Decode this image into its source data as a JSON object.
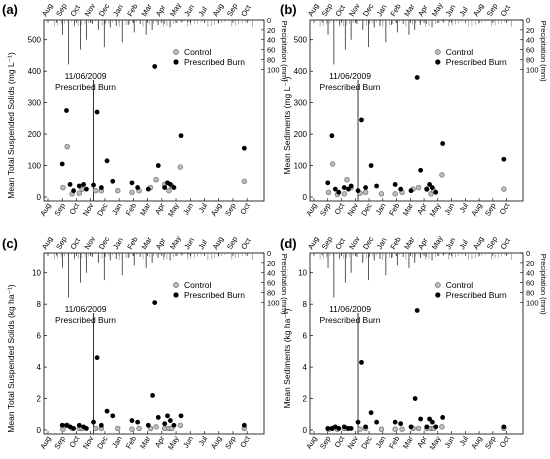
{
  "figure": {
    "panels": [
      {
        "tag": "(a)",
        "ylabel_html": "Mean Total Suspended Solids (mg L⁻¹)",
        "yticks": [
          "0",
          "100",
          "200",
          "300",
          "400",
          "500"
        ]
      },
      {
        "tag": "(b)",
        "ylabel_html": "Mean Sediments (mg L⁻¹)",
        "yticks": [
          "0",
          "100",
          "200",
          "300",
          "400",
          "500"
        ]
      },
      {
        "tag": "(c)",
        "ylabel_html": "Mean Total Suspended Solids (kg ha⁻¹)",
        "yticks": [
          "0",
          "2",
          "4",
          "6",
          "8",
          "10"
        ]
      },
      {
        "tag": "(d)",
        "ylabel_html": "Mean Sediments (kg ha⁻¹)",
        "yticks": [
          "0",
          "2",
          "4",
          "6",
          "8",
          "10"
        ]
      }
    ],
    "months": [
      "Aug",
      "Sep",
      "Oct",
      "Nov",
      "Dec",
      "Jan",
      "Feb",
      "Mar",
      "Apr",
      "May",
      "Jun",
      "Jul",
      "Aug",
      "Sep",
      "Oct"
    ],
    "precip_label": "Precipitation (mm)",
    "precip_ticks": [
      "0",
      "20",
      "40",
      "60",
      "80",
      "100"
    ],
    "annotation": "11/06/2009",
    "annotation2": "Prescribed Burn",
    "legend": [
      "Control",
      "Prescribed Burn"
    ]
  },
  "chart_data": [
    {
      "type": "scatter",
      "panel": "(a)",
      "ylabel": "Mean Total Suspended Solids (mg L-1)",
      "xlabel": "",
      "ylim": [
        0,
        550
      ],
      "x_unit": "months since Aug 2009",
      "series": [
        {
          "name": "Control",
          "x": [
            1.05,
            1.35,
            1.7,
            2.2,
            2.4,
            3.35,
            3.75,
            4.9,
            5.9,
            6.4,
            7.2,
            7.6,
            8.2,
            8.5,
            8.7,
            9.3,
            13.8
          ],
          "y": [
            30,
            160,
            10,
            12,
            25,
            20,
            20,
            20,
            15,
            20,
            30,
            55,
            40,
            20,
            35,
            95,
            50
          ]
        },
        {
          "name": "Prescribed Burn",
          "x": [
            1.0,
            1.3,
            1.55,
            1.8,
            2.2,
            2.5,
            2.7,
            3.2,
            3.45,
            3.75,
            4.15,
            4.55,
            5.9,
            6.3,
            7.05,
            7.5,
            7.75,
            8.2,
            8.4,
            8.6,
            8.85,
            9.35,
            13.8
          ],
          "y": [
            105,
            275,
            40,
            20,
            35,
            40,
            25,
            38,
            270,
            30,
            115,
            50,
            45,
            30,
            25,
            415,
            100,
            30,
            45,
            40,
            30,
            195,
            155
          ]
        }
      ],
      "precipitation_mm": [
        5,
        30,
        90,
        10,
        60,
        40,
        8,
        20,
        55,
        15,
        12,
        45,
        10,
        25,
        8,
        30,
        20,
        10,
        8,
        15,
        6,
        5,
        4
      ]
    },
    {
      "type": "scatter",
      "panel": "(b)",
      "ylabel": "Mean Sediments (mg L-1)",
      "xlabel": "",
      "ylim": [
        0,
        550
      ],
      "x_unit": "months since Aug 2009",
      "series": [
        {
          "name": "Control",
          "x": [
            1.05,
            1.35,
            1.7,
            2.2,
            2.4,
            2.7,
            3.35,
            3.75,
            4.9,
            5.9,
            6.4,
            7.2,
            7.6,
            8.2,
            8.5,
            8.7,
            9.3,
            13.8
          ],
          "y": [
            15,
            105,
            8,
            10,
            55,
            30,
            12,
            15,
            10,
            10,
            15,
            25,
            30,
            25,
            10,
            20,
            70,
            25
          ]
        },
        {
          "name": "Prescribed Burn",
          "x": [
            1.0,
            1.3,
            1.55,
            1.8,
            2.2,
            2.5,
            2.7,
            3.2,
            3.45,
            3.75,
            4.15,
            4.55,
            5.9,
            6.3,
            7.05,
            7.5,
            7.75,
            8.2,
            8.4,
            8.6,
            8.85,
            9.35,
            13.8
          ],
          "y": [
            45,
            195,
            25,
            15,
            30,
            25,
            35,
            20,
            245,
            30,
            100,
            35,
            40,
            25,
            20,
            380,
            85,
            25,
            40,
            30,
            15,
            170,
            120
          ]
        }
      ],
      "precipitation_mm": [
        5,
        30,
        90,
        10,
        60,
        40,
        8,
        20,
        55,
        15,
        12,
        45,
        10,
        25,
        8,
        30,
        20,
        10,
        8,
        15,
        6,
        5,
        4
      ]
    },
    {
      "type": "scatter",
      "panel": "(c)",
      "ylabel": "Mean Total Suspended Solids (kg ha-1)",
      "xlabel": "",
      "ylim": [
        0,
        11
      ],
      "x_unit": "months since Aug 2009",
      "series": [
        {
          "name": "Control",
          "x": [
            1.05,
            1.35,
            1.7,
            2.2,
            2.4,
            3.35,
            3.75,
            4.9,
            5.9,
            6.4,
            7.2,
            7.6,
            8.2,
            8.5,
            8.7,
            9.3,
            13.8
          ],
          "y": [
            0.05,
            0.3,
            0.1,
            0.1,
            0.1,
            0.1,
            0.1,
            0.1,
            0.05,
            0.1,
            0.1,
            0.2,
            0.1,
            0.1,
            0.1,
            0.3,
            0.1
          ]
        },
        {
          "name": "Prescribed Burn",
          "x": [
            1.0,
            1.3,
            1.55,
            1.8,
            2.2,
            2.5,
            2.7,
            3.2,
            3.45,
            3.75,
            4.15,
            4.55,
            5.9,
            6.3,
            7.05,
            7.35,
            7.5,
            7.75,
            8.2,
            8.4,
            8.6,
            8.85,
            9.35,
            13.8
          ],
          "y": [
            0.3,
            0.3,
            0.2,
            0.1,
            0.3,
            0.2,
            0.1,
            0.5,
            4.6,
            0.3,
            1.2,
            0.9,
            0.6,
            0.5,
            0.3,
            2.2,
            8.1,
            0.8,
            0.4,
            0.9,
            0.6,
            0.3,
            0.9,
            0.3
          ]
        }
      ],
      "precipitation_mm": [
        5,
        30,
        90,
        10,
        60,
        40,
        8,
        20,
        55,
        15,
        12,
        45,
        10,
        25,
        8,
        30,
        20,
        10,
        8,
        15,
        6,
        5,
        4
      ]
    },
    {
      "type": "scatter",
      "panel": "(d)",
      "ylabel": "Mean Sediments (kg ha-1)",
      "xlabel": "",
      "ylim": [
        0,
        11
      ],
      "x_unit": "months since Aug 2009",
      "series": [
        {
          "name": "Control",
          "x": [
            1.05,
            1.35,
            1.7,
            2.2,
            2.4,
            3.35,
            3.75,
            4.9,
            5.9,
            6.4,
            7.2,
            7.6,
            8.2,
            8.5,
            8.7,
            9.3,
            13.8
          ],
          "y": [
            0.05,
            0.1,
            0.05,
            0.1,
            0.1,
            0.05,
            0.1,
            0.05,
            0.05,
            0.05,
            0.1,
            0.1,
            0.1,
            0.1,
            0.1,
            0.2,
            0.1
          ]
        },
        {
          "name": "Prescribed Burn",
          "x": [
            1.0,
            1.3,
            1.55,
            1.8,
            2.2,
            2.5,
            2.7,
            3.2,
            3.45,
            3.75,
            4.15,
            4.55,
            5.9,
            6.3,
            7.05,
            7.35,
            7.5,
            7.75,
            8.2,
            8.4,
            8.6,
            8.85,
            9.35,
            13.8
          ],
          "y": [
            0.1,
            0.1,
            0.2,
            0.1,
            0.2,
            0.1,
            0.1,
            0.5,
            4.3,
            0.2,
            1.1,
            0.5,
            0.5,
            0.4,
            0.2,
            2.0,
            7.6,
            0.7,
            0.2,
            0.7,
            0.5,
            0.2,
            0.8,
            0.2
          ]
        }
      ],
      "precipitation_mm": [
        5,
        30,
        90,
        10,
        60,
        40,
        8,
        20,
        55,
        15,
        12,
        45,
        10,
        25,
        8,
        30,
        20,
        10,
        8,
        15,
        6,
        5,
        4
      ]
    }
  ]
}
